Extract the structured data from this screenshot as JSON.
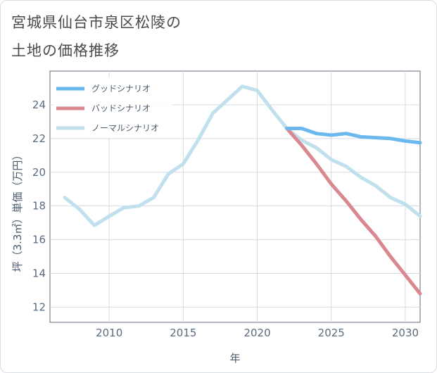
{
  "title_lines": [
    "宮城県仙台市泉区松陵の",
    "土地の価格推移"
  ],
  "chart_data": {
    "type": "line",
    "title": "宮城県仙台市泉区松陵の土地の価格推移",
    "xlabel": "年",
    "ylabel": "坪（3.3㎡）単価（万円）",
    "xlim": [
      2006,
      2031
    ],
    "ylim": [
      11.1,
      26.0
    ],
    "x_ticks": [
      2010,
      2015,
      2020,
      2025,
      2030
    ],
    "y_ticks": [
      12,
      14,
      16,
      18,
      20,
      22,
      24
    ],
    "grid": true,
    "legend_position": "top-left",
    "series": [
      {
        "name": "グッドシナリオ",
        "color": "#6bb8ee",
        "x": [
          2022,
          2023,
          2024,
          2025,
          2026,
          2027,
          2028,
          2029,
          2030,
          2031
        ],
        "y": [
          22.6,
          22.6,
          22.3,
          22.2,
          22.3,
          22.1,
          22.05,
          22.0,
          21.85,
          21.75
        ]
      },
      {
        "name": "バッドシナリオ",
        "color": "#d98890",
        "x": [
          2022,
          2023,
          2024,
          2025,
          2026,
          2027,
          2028,
          2029,
          2030,
          2031
        ],
        "y": [
          22.6,
          21.6,
          20.5,
          19.3,
          18.3,
          17.2,
          16.2,
          15.0,
          13.9,
          12.8
        ]
      },
      {
        "name": "ノーマルシナリオ",
        "color": "#c0e0ee",
        "x": [
          2007,
          2008,
          2009,
          2010,
          2011,
          2012,
          2013,
          2014,
          2015,
          2016,
          2017,
          2018,
          2019,
          2020,
          2021,
          2022,
          2023,
          2024,
          2025,
          2026,
          2027,
          2028,
          2029,
          2030,
          2031
        ],
        "y": [
          18.5,
          17.8,
          16.85,
          17.4,
          17.9,
          18.0,
          18.5,
          19.9,
          20.5,
          21.9,
          23.5,
          24.3,
          25.1,
          24.85,
          23.7,
          22.6,
          21.9,
          21.45,
          20.75,
          20.35,
          19.7,
          19.2,
          18.5,
          18.1,
          17.4
        ]
      }
    ]
  }
}
